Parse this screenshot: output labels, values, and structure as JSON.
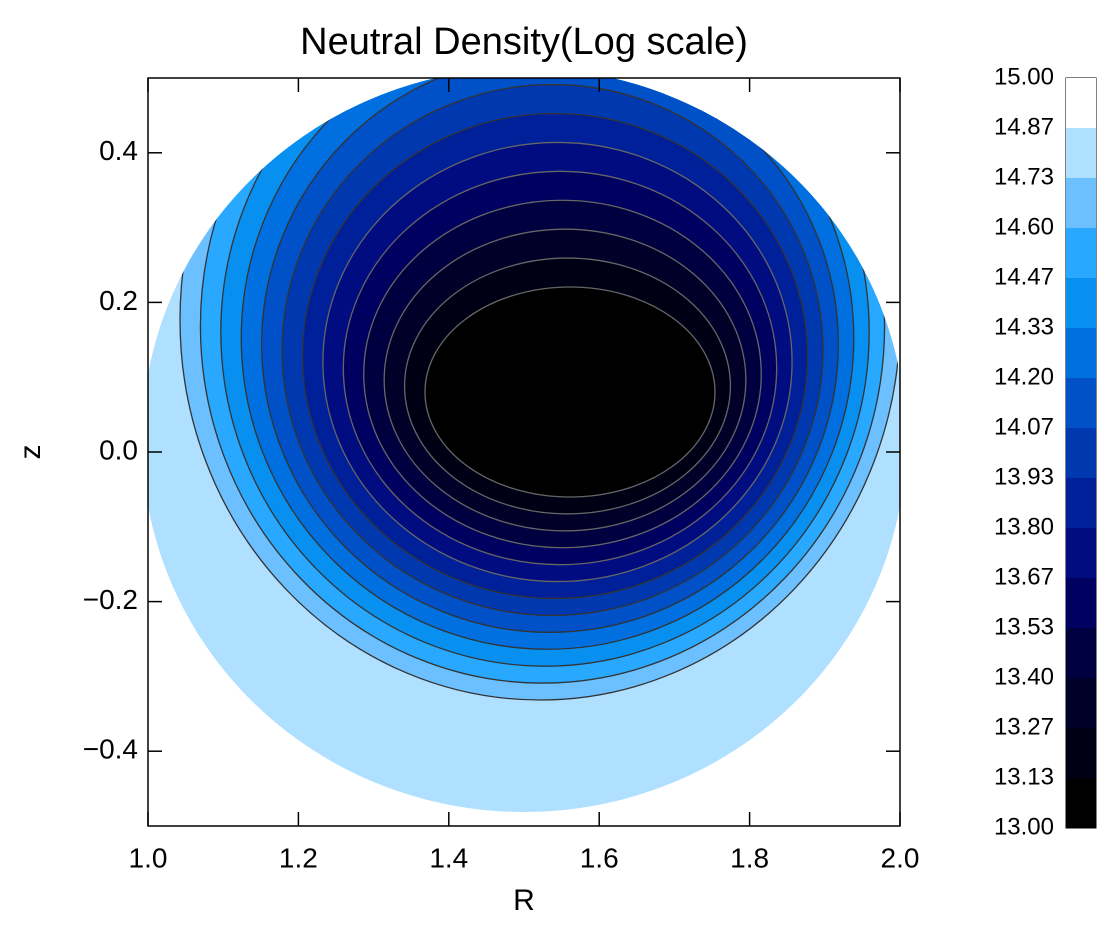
{
  "chart_data": {
    "type": "contour",
    "title": "Neutral Density(Log scale)",
    "xlabel": "R",
    "ylabel": "z",
    "xlim": [
      1.0,
      2.0
    ],
    "xticks": [
      {
        "value": 1.0,
        "label": "1.0"
      },
      1.2,
      1.4,
      1.6,
      1.8,
      {
        "value": 2.0,
        "label": "2.0"
      }
    ],
    "ylim": [
      -0.5,
      0.5
    ],
    "yticks": [
      {
        "value": -0.4,
        "label": "−0.4"
      },
      {
        "value": -0.2,
        "label": "−0.2"
      },
      {
        "value": 0,
        "label": "0.0"
      },
      0.2,
      0.4
    ],
    "levels": [
      {
        "value": 13.0,
        "label": "13.00"
      },
      13.13,
      13.27,
      {
        "value": 13.4,
        "label": "13.40"
      },
      13.53,
      13.67,
      {
        "value": 13.8,
        "label": "13.80"
      },
      13.93,
      14.07,
      {
        "value": 14.2,
        "label": "14.20"
      },
      14.33,
      14.47,
      {
        "value": 14.6,
        "label": "14.60"
      },
      14.73,
      14.87,
      {
        "value": 15.0,
        "label": "15.00"
      }
    ],
    "colors": [
      "#000000",
      "#000014",
      "#000028",
      "#000040",
      "#000060",
      "#000c80",
      "#00209a",
      "#0038b0",
      "#0050c8",
      "#0070e0",
      "#0890f0",
      "#28a8ff",
      "#6cc0ff",
      "#b0e0ff",
      "#ffffff"
    ]
  }
}
